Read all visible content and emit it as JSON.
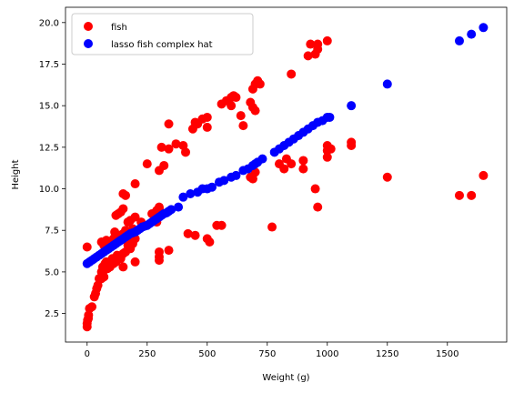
{
  "chart_data": {
    "type": "scatter",
    "xlabel": "Weight (g)",
    "ylabel": "Height",
    "xlim": [
      -90,
      1747
    ],
    "ylim": [
      0.78,
      20.92
    ],
    "xticks": [
      0,
      250,
      500,
      750,
      1000,
      1250,
      1500
    ],
    "yticks": [
      2.5,
      5.0,
      7.5,
      10.0,
      12.5,
      15.0,
      17.5,
      20.0
    ],
    "xtick_labels": [
      "0",
      "250",
      "500",
      "750",
      "1000",
      "1250",
      "1500"
    ],
    "ytick_labels": [
      "2.5",
      "5.0",
      "7.5",
      "10.0",
      "12.5",
      "15.0",
      "17.5",
      "20.0"
    ],
    "legend_position": "upper left",
    "series": [
      {
        "name": "fish",
        "color": "#ff0000",
        "points": [
          [
            0,
            1.7
          ],
          [
            0,
            1.9
          ],
          [
            2,
            2.1
          ],
          [
            5,
            2.2
          ],
          [
            6,
            2.4
          ],
          [
            10,
            2.8
          ],
          [
            20,
            2.9
          ],
          [
            30,
            3.5
          ],
          [
            35,
            3.7
          ],
          [
            40,
            4.0
          ],
          [
            45,
            4.2
          ],
          [
            50,
            4.6
          ],
          [
            60,
            4.6
          ],
          [
            70,
            4.7
          ],
          [
            0,
            6.5
          ],
          [
            60,
            5.0
          ],
          [
            65,
            5.3
          ],
          [
            70,
            5.1
          ],
          [
            75,
            5.5
          ],
          [
            80,
            5.6
          ],
          [
            85,
            5.2
          ],
          [
            90,
            5.4
          ],
          [
            95,
            5.3
          ],
          [
            100,
            5.6
          ],
          [
            105,
            5.8
          ],
          [
            110,
            5.5
          ],
          [
            115,
            5.7
          ],
          [
            120,
            5.6
          ],
          [
            125,
            6.0
          ],
          [
            130,
            5.9
          ],
          [
            140,
            5.8
          ],
          [
            150,
            5.3
          ],
          [
            150,
            6.1
          ],
          [
            160,
            6.2
          ],
          [
            170,
            6.6
          ],
          [
            180,
            6.4
          ],
          [
            190,
            6.7
          ],
          [
            200,
            5.6
          ],
          [
            200,
            7.0
          ],
          [
            60,
            6.8
          ],
          [
            70,
            6.6
          ],
          [
            80,
            6.9
          ],
          [
            90,
            6.7
          ],
          [
            100,
            6.6
          ],
          [
            110,
            7.0
          ],
          [
            115,
            7.4
          ],
          [
            120,
            6.8
          ],
          [
            135,
            7.2
          ],
          [
            140,
            7.0
          ],
          [
            150,
            7.3
          ],
          [
            160,
            7.5
          ],
          [
            170,
            7.2
          ],
          [
            180,
            7.0
          ],
          [
            190,
            7.6
          ],
          [
            120,
            8.4
          ],
          [
            130,
            8.5
          ],
          [
            140,
            8.6
          ],
          [
            150,
            8.8
          ],
          [
            150,
            9.7
          ],
          [
            160,
            9.6
          ],
          [
            170,
            8.0
          ],
          [
            180,
            8.1
          ],
          [
            200,
            8.3
          ],
          [
            200,
            10.3
          ],
          [
            225,
            8.0
          ],
          [
            240,
            7.8
          ],
          [
            250,
            11.5
          ],
          [
            270,
            8.5
          ],
          [
            280,
            8.4
          ],
          [
            290,
            8.7
          ],
          [
            300,
            8.8
          ],
          [
            310,
            12.5
          ],
          [
            300,
            11.1
          ],
          [
            320,
            11.4
          ],
          [
            290,
            8.0
          ],
          [
            300,
            8.9
          ],
          [
            300,
            6.2
          ],
          [
            300,
            5.9
          ],
          [
            300,
            5.7
          ],
          [
            340,
            6.3
          ],
          [
            340,
            12.4
          ],
          [
            340,
            13.9
          ],
          [
            370,
            12.7
          ],
          [
            400,
            12.6
          ],
          [
            410,
            12.2
          ],
          [
            420,
            7.3
          ],
          [
            450,
            7.2
          ],
          [
            440,
            13.6
          ],
          [
            450,
            14.0
          ],
          [
            460,
            13.9
          ],
          [
            480,
            14.2
          ],
          [
            500,
            14.3
          ],
          [
            500,
            13.7
          ],
          [
            500,
            7.0
          ],
          [
            510,
            6.8
          ],
          [
            540,
            7.8
          ],
          [
            560,
            7.8
          ],
          [
            560,
            15.1
          ],
          [
            580,
            15.3
          ],
          [
            600,
            15.0
          ],
          [
            600,
            15.5
          ],
          [
            610,
            15.6
          ],
          [
            620,
            15.5
          ],
          [
            640,
            14.4
          ],
          [
            650,
            13.8
          ],
          [
            680,
            15.2
          ],
          [
            690,
            14.9
          ],
          [
            700,
            14.7
          ],
          [
            690,
            16.0
          ],
          [
            700,
            16.3
          ],
          [
            710,
            16.5
          ],
          [
            720,
            16.3
          ],
          [
            680,
            10.7
          ],
          [
            690,
            10.6
          ],
          [
            700,
            11.0
          ],
          [
            770,
            7.7
          ],
          [
            800,
            11.5
          ],
          [
            820,
            11.2
          ],
          [
            830,
            11.8
          ],
          [
            850,
            11.5
          ],
          [
            850,
            16.9
          ],
          [
            900,
            11.7
          ],
          [
            900,
            11.2
          ],
          [
            920,
            18.0
          ],
          [
            930,
            18.7
          ],
          [
            950,
            18.1
          ],
          [
            960,
            18.4
          ],
          [
            960,
            18.7
          ],
          [
            1000,
            18.9
          ],
          [
            950,
            10.0
          ],
          [
            960,
            8.9
          ],
          [
            1000,
            12.3
          ],
          [
            1000,
            11.9
          ],
          [
            1000,
            12.6
          ],
          [
            1015,
            12.4
          ],
          [
            1100,
            12.6
          ],
          [
            1100,
            12.8
          ],
          [
            1250,
            10.7
          ],
          [
            1550,
            9.6
          ],
          [
            1600,
            9.6
          ],
          [
            1650,
            10.8
          ]
        ]
      },
      {
        "name": "lasso fish complex hat",
        "color": "#0000ff",
        "points": [
          [
            0,
            5.5
          ],
          [
            10,
            5.6
          ],
          [
            20,
            5.7
          ],
          [
            30,
            5.8
          ],
          [
            40,
            5.9
          ],
          [
            50,
            6.0
          ],
          [
            60,
            6.1
          ],
          [
            70,
            6.2
          ],
          [
            80,
            6.3
          ],
          [
            90,
            6.4
          ],
          [
            100,
            6.5
          ],
          [
            110,
            6.6
          ],
          [
            120,
            6.7
          ],
          [
            130,
            6.8
          ],
          [
            140,
            6.9
          ],
          [
            150,
            7.0
          ],
          [
            160,
            7.1
          ],
          [
            170,
            7.2
          ],
          [
            180,
            7.3
          ],
          [
            190,
            7.35
          ],
          [
            200,
            7.4
          ],
          [
            210,
            7.5
          ],
          [
            220,
            7.6
          ],
          [
            230,
            7.7
          ],
          [
            240,
            7.75
          ],
          [
            250,
            7.8
          ],
          [
            260,
            7.9
          ],
          [
            270,
            8.0
          ],
          [
            280,
            8.1
          ],
          [
            290,
            8.2
          ],
          [
            300,
            8.3
          ],
          [
            310,
            8.4
          ],
          [
            320,
            8.5
          ],
          [
            330,
            8.55
          ],
          [
            340,
            8.65
          ],
          [
            350,
            8.75
          ],
          [
            380,
            8.9
          ],
          [
            400,
            9.5
          ],
          [
            430,
            9.7
          ],
          [
            460,
            9.8
          ],
          [
            480,
            10.0
          ],
          [
            500,
            10.0
          ],
          [
            520,
            10.1
          ],
          [
            550,
            10.4
          ],
          [
            570,
            10.5
          ],
          [
            600,
            10.7
          ],
          [
            620,
            10.8
          ],
          [
            650,
            11.1
          ],
          [
            670,
            11.2
          ],
          [
            690,
            11.4
          ],
          [
            700,
            11.5
          ],
          [
            710,
            11.6
          ],
          [
            730,
            11.8
          ],
          [
            780,
            12.2
          ],
          [
            800,
            12.4
          ],
          [
            820,
            12.6
          ],
          [
            840,
            12.8
          ],
          [
            860,
            13.0
          ],
          [
            880,
            13.2
          ],
          [
            900,
            13.4
          ],
          [
            920,
            13.6
          ],
          [
            940,
            13.8
          ],
          [
            960,
            14.0
          ],
          [
            980,
            14.1
          ],
          [
            1000,
            14.3
          ],
          [
            1010,
            14.3
          ],
          [
            1100,
            15.0
          ],
          [
            1250,
            16.3
          ],
          [
            1550,
            18.9
          ],
          [
            1600,
            19.3
          ],
          [
            1650,
            19.7
          ]
        ]
      }
    ]
  }
}
